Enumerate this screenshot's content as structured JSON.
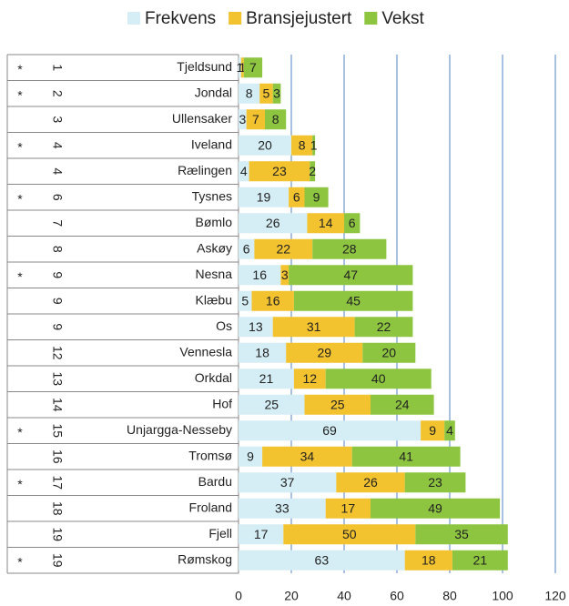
{
  "chart_data": {
    "type": "stacked-barh",
    "categories": [
      "Tjeldsund",
      "Jondal",
      "Ullensaker",
      "Iveland",
      "Rælingen",
      "Tysnes",
      "Bømlo",
      "Askøy",
      "Nesna",
      "Klæbu",
      "Os",
      "Vennesla",
      "Orkdal",
      "Hof",
      "Unjargga-Nesseby",
      "Tromsø",
      "Bardu",
      "Froland",
      "Fjell",
      "Rømskog"
    ],
    "ranks": [
      1,
      2,
      3,
      4,
      4,
      6,
      7,
      8,
      9,
      9,
      9,
      12,
      13,
      14,
      15,
      16,
      17,
      18,
      19,
      19
    ],
    "marks": [
      "*",
      "*",
      null,
      "*",
      null,
      "*",
      null,
      null,
      "*",
      null,
      null,
      null,
      null,
      null,
      "*",
      null,
      "*",
      null,
      null,
      "*"
    ],
    "series": [
      {
        "name": "Frekvens",
        "color": "#d5eef6",
        "values": [
          1,
          8,
          3,
          20,
          4,
          19,
          26,
          6,
          16,
          5,
          13,
          18,
          21,
          25,
          69,
          9,
          37,
          33,
          17,
          63
        ]
      },
      {
        "name": "Bransjejustert",
        "color": "#f3c22f",
        "values": [
          1,
          5,
          7,
          8,
          23,
          6,
          14,
          22,
          3,
          16,
          31,
          29,
          12,
          25,
          9,
          34,
          26,
          17,
          50,
          18
        ]
      },
      {
        "name": "Vekst",
        "color": "#8dc540",
        "values": [
          7,
          3,
          8,
          1,
          2,
          9,
          6,
          28,
          47,
          45,
          22,
          20,
          40,
          24,
          4,
          41,
          23,
          49,
          35,
          21
        ]
      }
    ],
    "xlim": [
      0,
      120
    ],
    "xticks": [
      0,
      20,
      40,
      60,
      80,
      100,
      120
    ],
    "grid": true,
    "legend": "top"
  }
}
